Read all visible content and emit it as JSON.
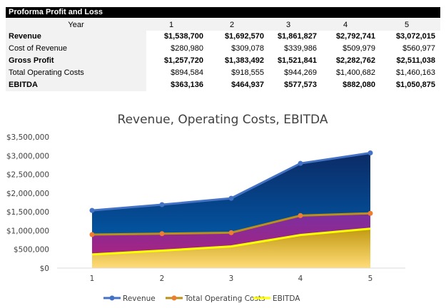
{
  "table": {
    "title": "Proforma Profit and Loss",
    "year_label": "Year",
    "years": [
      "1",
      "2",
      "3",
      "4",
      "5"
    ],
    "rows": [
      {
        "label": "Revenue",
        "bold": true,
        "values": [
          "$1,538,700",
          "$1,692,570",
          "$1,861,827",
          "$2,792,741",
          "$3,072,015"
        ]
      },
      {
        "label": "Cost of Revenue",
        "bold": false,
        "values": [
          "$280,980",
          "$309,078",
          "$339,986",
          "$509,979",
          "$560,977"
        ]
      },
      {
        "label": "Gross Profit",
        "bold": true,
        "values": [
          "$1,257,720",
          "$1,383,492",
          "$1,521,841",
          "$2,282,762",
          "$2,511,038"
        ]
      },
      {
        "label": "Total Operating Costs",
        "bold": false,
        "values": [
          "$894,584",
          "$918,555",
          "$944,269",
          "$1,400,682",
          "$1,460,163"
        ]
      },
      {
        "label": "EBITDA",
        "bold": true,
        "values": [
          "$363,136",
          "$464,937",
          "$577,573",
          "$882,080",
          "$1,050,875"
        ]
      }
    ]
  },
  "chart_data": {
    "type": "area",
    "title": "Revenue, Operating Costs, EBITDA",
    "categories": [
      "1",
      "2",
      "3",
      "4",
      "5"
    ],
    "ylim": [
      0,
      3500000
    ],
    "yticks": [
      "$0",
      "$500,000",
      "$1,000,000",
      "$1,500,000",
      "$2,000,000",
      "$2,500,000",
      "$3,000,000",
      "$3,500,000"
    ],
    "grid": false,
    "legend_position": "bottom",
    "series": [
      {
        "name": "Revenue",
        "values": [
          1538700,
          1692570,
          1861827,
          2792741,
          3072015
        ],
        "line_color": "#4472c4",
        "marker_color": "#4472c4",
        "fill_top": "#0b2b66",
        "fill_bottom": "#0065b8"
      },
      {
        "name": "Total Operating Costs",
        "values": [
          894584,
          918555,
          944269,
          1400682,
          1460163
        ],
        "line_color": "#b8901a",
        "marker_color": "#ed7d31",
        "fill_top": "#7a2fa0",
        "fill_bottom": "#b51f78"
      },
      {
        "name": "EBITDA",
        "values": [
          363136,
          464937,
          577573,
          882080,
          1050875
        ],
        "line_color": "#ffff00",
        "marker_color": null,
        "fill_top": "#c29a12",
        "fill_bottom": "#ffdc78"
      }
    ]
  }
}
